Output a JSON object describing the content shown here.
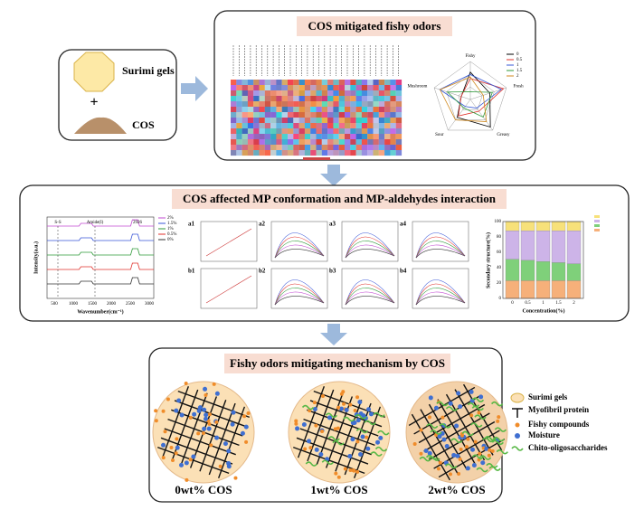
{
  "input": {
    "surimi": "Surimi gels",
    "plus": "+",
    "cos": "COS"
  },
  "odors": {
    "title": "COS mitigated fishy odors",
    "radar_labels": [
      "Fishy",
      "Fresh",
      "Greasy",
      "Sour",
      "Mushroom"
    ],
    "radar_legend": [
      "0",
      "0.5",
      "1",
      "1.5",
      "2"
    ]
  },
  "conformation": {
    "title": "COS affected MP conformation and MP-aldehydes interaction",
    "ftir": {
      "xlabel": "Wavenumber(cm⁻¹)",
      "ylabel": "Intensity(a.u.)",
      "legend": [
        "2%",
        "1.5%",
        "1%",
        "0.5%",
        "0%"
      ],
      "annotations": [
        "S-S",
        "Amide(I)",
        "2926"
      ],
      "xticks": [
        "500",
        "1000",
        "1500",
        "2000",
        "2500",
        "3000"
      ]
    },
    "panels": [
      "a1",
      "a2",
      "a3",
      "a4",
      "b1",
      "b2",
      "b3",
      "b4"
    ],
    "structure": {
      "xlabel": "Concentration(%)",
      "ylabel": "Secondary structure(%)",
      "xticks": [
        "0",
        "0.5",
        "1",
        "1.5",
        "2"
      ],
      "yticks": [
        "0",
        "20",
        "40",
        "60",
        "80",
        "100"
      ]
    }
  },
  "mechanism": {
    "title": "Fishy odors mitigating mechanism by COS",
    "legend": [
      "Surimi gels",
      "Myofibril protein",
      "Fishy compounds",
      "Moisture",
      "Chito-oligosaccharides"
    ],
    "captions": [
      "0wt% COS",
      "1wt% COS",
      "2wt% COS"
    ]
  }
}
